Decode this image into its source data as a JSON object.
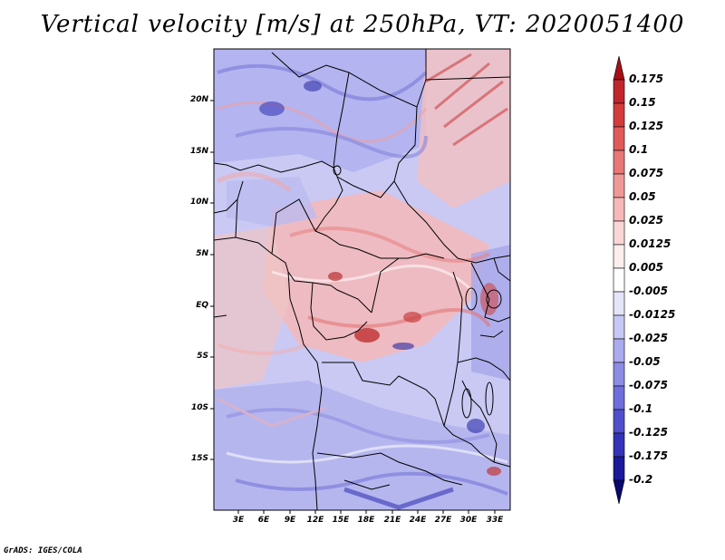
{
  "title": "Vertical velocity [m/s] at 250hPa, VT: 2020051400",
  "credit": "GrADS: IGES/COLA",
  "map": {
    "variable": "Vertical velocity",
    "units": "m/s",
    "level": "250hPa",
    "valid_time": "2020051400",
    "lat_ticks": [
      "20N",
      "15N",
      "10N",
      "5N",
      "EQ",
      "5S",
      "10S",
      "15S"
    ],
    "lon_ticks": [
      "3E",
      "6E",
      "9E",
      "12E",
      "15E",
      "18E",
      "21E",
      "24E",
      "27E",
      "30E",
      "33E"
    ]
  },
  "colorbar": {
    "levels": [
      "0.175",
      "0.15",
      "0.125",
      "0.1",
      "0.075",
      "0.05",
      "0.025",
      "0.0125",
      "0.005",
      "-0.005",
      "-0.0125",
      "-0.025",
      "-0.05",
      "-0.075",
      "-0.1",
      "-0.125",
      "-0.175",
      "-0.2"
    ],
    "colors": [
      "#a50f15",
      "#c0272d",
      "#d43c3c",
      "#e05a5a",
      "#e87878",
      "#f09898",
      "#f6b8b8",
      "#fbd6d6",
      "#fdeeee",
      "#ffffff",
      "#e4e4fa",
      "#c8c8f4",
      "#aaaaee",
      "#8c8ce6",
      "#6e6edc",
      "#5050cc",
      "#3434b8",
      "#1a1a9a",
      "#08086e"
    ]
  }
}
